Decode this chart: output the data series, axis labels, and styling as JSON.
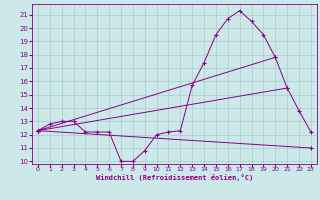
{
  "xlabel": "Windchill (Refroidissement éolien,°C)",
  "background_color": "#cce8e8",
  "grid_color": "#aacccc",
  "line_color": "#880088",
  "xlim": [
    -0.5,
    23.5
  ],
  "ylim": [
    9.8,
    21.8
  ],
  "xticks": [
    0,
    1,
    2,
    3,
    4,
    5,
    6,
    7,
    8,
    9,
    10,
    11,
    12,
    13,
    14,
    15,
    16,
    17,
    18,
    19,
    20,
    21,
    22,
    23
  ],
  "yticks": [
    10,
    11,
    12,
    13,
    14,
    15,
    16,
    17,
    18,
    19,
    20,
    21
  ],
  "line1_x": [
    0,
    1,
    2,
    3,
    4,
    5,
    6,
    7,
    8,
    9,
    10,
    11,
    12,
    13,
    14,
    15,
    16,
    17,
    18,
    19,
    20,
    21,
    22,
    23
  ],
  "line1_y": [
    12.3,
    12.8,
    13.0,
    13.0,
    12.2,
    12.2,
    12.2,
    10.0,
    10.0,
    10.8,
    12.0,
    12.2,
    12.3,
    15.7,
    17.4,
    19.5,
    20.7,
    21.3,
    20.5,
    19.5,
    17.8,
    15.5,
    13.8,
    12.2
  ],
  "line2_x": [
    0,
    20
  ],
  "line2_y": [
    12.3,
    17.8
  ],
  "line3_x": [
    0,
    21
  ],
  "line3_y": [
    12.3,
    15.5
  ],
  "line4_x": [
    0,
    23
  ],
  "line4_y": [
    12.3,
    11.0
  ]
}
